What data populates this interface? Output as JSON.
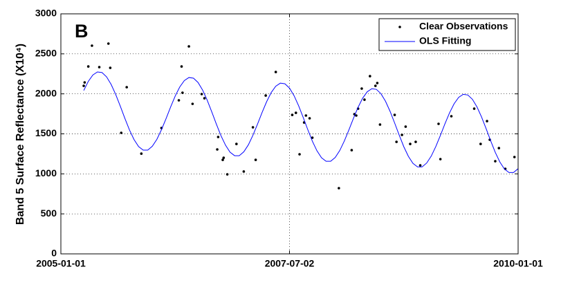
{
  "chart_data": {
    "type": "scatter",
    "annotation": "B",
    "ylabel": "Band 5 Surface Reflectance (X10⁴)",
    "xlim": [
      2005.0,
      2010.0
    ],
    "xticks": [
      {
        "value": 2005.0,
        "label": "2005-01-01"
      },
      {
        "value": 2007.5,
        "label": "2007-07-02"
      },
      {
        "value": 2010.0,
        "label": "2010-01-01"
      }
    ],
    "ylim": [
      0,
      3000
    ],
    "yticks": [
      0,
      500,
      1000,
      1500,
      2000,
      2500,
      3000
    ],
    "grid": true,
    "legend": "upper right",
    "series": [
      {
        "name": "Clear Observations",
        "type": "scatter",
        "color": "#000000",
        "x": [
          2005.25,
          2005.26,
          2005.3,
          2005.34,
          2005.42,
          2005.52,
          2005.54,
          2005.66,
          2005.72,
          2005.88,
          2006.1,
          2006.29,
          2006.32,
          2006.33,
          2006.4,
          2006.44,
          2006.54,
          2006.57,
          2006.71,
          2006.72,
          2006.77,
          2006.78,
          2006.82,
          2006.92,
          2007.0,
          2007.1,
          2007.13,
          2007.24,
          2007.35,
          2007.53,
          2007.57,
          2007.61,
          2007.66,
          2007.68,
          2007.72,
          2007.75,
          2008.04,
          2008.18,
          2008.21,
          2008.23,
          2008.25,
          2008.29,
          2008.32,
          2008.38,
          2008.44,
          2008.46,
          2008.49,
          2008.65,
          2008.67,
          2008.73,
          2008.77,
          2008.82,
          2008.88,
          2008.93,
          2009.13,
          2009.15,
          2009.27,
          2009.52,
          2009.59,
          2009.66,
          2009.69,
          2009.75,
          2009.79,
          2009.86,
          2009.96
        ],
        "values": [
          2100,
          2143,
          2342,
          2602,
          2334,
          2628,
          2325,
          1513,
          2083,
          1253,
          1573,
          1919,
          2342,
          2014,
          2593,
          1875,
          1997,
          1945,
          1305,
          1461,
          1175,
          1201,
          994,
          1374,
          1029,
          1582,
          1175,
          1979,
          2273,
          1737,
          1763,
          1245,
          1642,
          1729,
          1694,
          1452,
          821,
          1296,
          1746,
          1729,
          1815,
          2066,
          1927,
          2221,
          2100,
          2135,
          1616,
          1737,
          1400,
          1487,
          1590,
          1374,
          1400,
          1106,
          1625,
          1184,
          1720,
          1815,
          1374,
          1659,
          1426,
          1158,
          1322,
          1063,
          1210
        ]
      },
      {
        "name": "OLS Fitting",
        "type": "line",
        "color": "#0000ff",
        "x": [
          2005.25,
          2005.3,
          2005.35,
          2005.4,
          2005.45,
          2005.5,
          2005.55,
          2005.6,
          2005.65,
          2005.7,
          2005.75,
          2005.8,
          2005.85,
          2005.9,
          2005.95,
          2006.0,
          2006.05,
          2006.1,
          2006.15,
          2006.2,
          2006.25,
          2006.3,
          2006.35,
          2006.4,
          2006.45,
          2006.5,
          2006.55,
          2006.6,
          2006.65,
          2006.7,
          2006.75,
          2006.8,
          2006.85,
          2006.9,
          2006.95,
          2007.0,
          2007.05,
          2007.1,
          2007.15,
          2007.2,
          2007.25,
          2007.3,
          2007.35,
          2007.4,
          2007.45,
          2007.5,
          2007.55,
          2007.6,
          2007.65,
          2007.7,
          2007.75,
          2007.8,
          2007.85,
          2007.9,
          2007.95,
          2008.0,
          2008.05,
          2008.1,
          2008.15,
          2008.2,
          2008.25,
          2008.3,
          2008.35,
          2008.4,
          2008.45,
          2008.5,
          2008.55,
          2008.6,
          2008.65,
          2008.7,
          2008.75,
          2008.8,
          2008.85,
          2008.9,
          2008.95,
          2009.0,
          2009.05,
          2009.1,
          2009.15,
          2009.2,
          2009.25,
          2009.3,
          2009.35,
          2009.4,
          2009.45,
          2009.5,
          2009.55,
          2009.6,
          2009.65,
          2009.7,
          2009.75,
          2009.8,
          2009.85,
          2009.9,
          2009.95,
          2010.0
        ],
        "values": [
          2042,
          2156,
          2236,
          2274,
          2266,
          2212,
          2117,
          1991,
          1845,
          1693,
          1549,
          1429,
          1341,
          1297,
          1297,
          1345,
          1432,
          1552,
          1690,
          1836,
          1972,
          2086,
          2166,
          2204,
          2196,
          2142,
          2047,
          1921,
          1775,
          1623,
          1479,
          1359,
          1271,
          1227,
          1227,
          1275,
          1362,
          1482,
          1620,
          1766,
          1902,
          2016,
          2096,
          2134,
          2126,
          2072,
          1977,
          1851,
          1705,
          1553,
          1409,
          1289,
          1201,
          1157,
          1157,
          1205,
          1292,
          1412,
          1550,
          1696,
          1832,
          1946,
          2026,
          2064,
          2056,
          2002,
          1907,
          1781,
          1635,
          1483,
          1339,
          1219,
          1131,
          1087,
          1087,
          1135,
          1222,
          1342,
          1480,
          1626,
          1762,
          1876,
          1956,
          1994,
          1986,
          1932,
          1837,
          1711,
          1565,
          1413,
          1269,
          1149,
          1061,
          1017,
          1017,
          1065
        ]
      }
    ]
  }
}
